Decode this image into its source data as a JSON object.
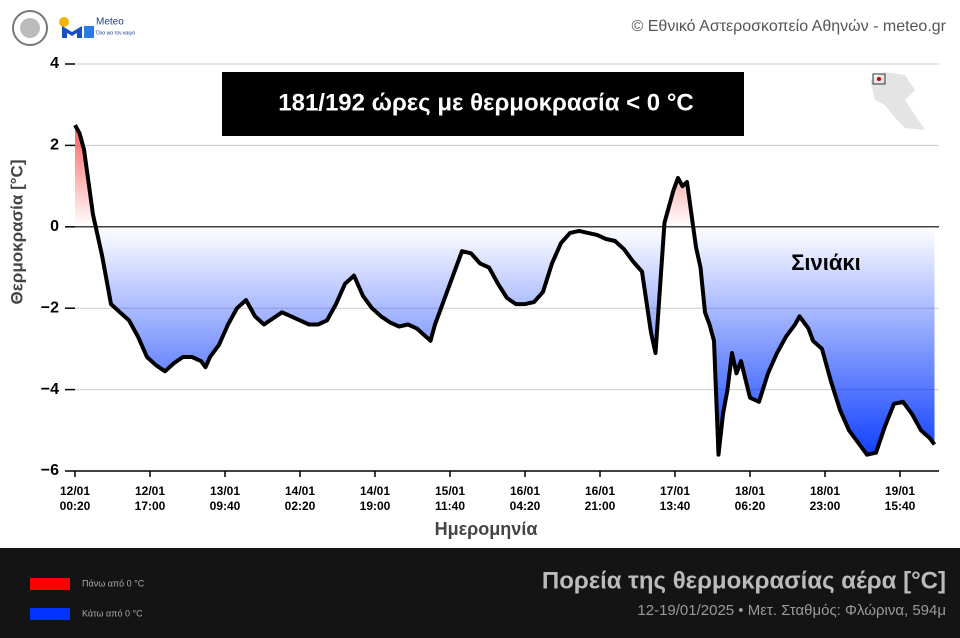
{
  "header": {
    "copyright": "© Εθνικό Αστεροσκοπείο Αθηνών - meteo.gr",
    "logo_name": "Meteo",
    "logo_tagline": "Όλα για τον καιρό"
  },
  "chart_data": {
    "type": "line",
    "title": "Πορεία της θερμοκρασίας αέρα [°C]",
    "subtitle": "12-19/01/2025 • Μετ. Σταθμός: Φλώρινα, 594μ",
    "annotation": "181/192 ώρες με θερμοκρασία < 0 °C",
    "x_label": "Ημερομηνία",
    "y_label": "Θερμοκρασία [°C]",
    "x": [
      "12/01 00:20",
      "12/01 01:20",
      "12/01 02:20",
      "12/01 04:20",
      "12/01 06:20",
      "12/01 08:20",
      "12/01 10:20",
      "12/01 12:20",
      "12/01 14:20",
      "12/01 16:20",
      "12/01 18:20",
      "12/01 20:20",
      "12/01 22:20",
      "13/01 00:20",
      "13/01 02:20",
      "13/01 04:20",
      "13/01 05:20",
      "13/01 06:20",
      "13/01 08:20",
      "13/01 10:20",
      "13/01 12:20",
      "13/01 14:20",
      "13/01 16:20",
      "13/01 18:20",
      "13/01 20:20",
      "13/01 22:20",
      "14/01 00:20",
      "14/01 02:20",
      "14/01 04:20",
      "14/01 06:20",
      "14/01 08:20",
      "14/01 10:20",
      "14/01 12:20",
      "14/01 14:20",
      "14/01 16:20",
      "14/01 18:20",
      "14/01 20:20",
      "14/01 22:20",
      "15/01 00:20",
      "15/01 02:20",
      "15/01 04:20",
      "15/01 06:20",
      "15/01 07:20",
      "15/01 08:20",
      "15/01 10:20",
      "15/01 12:20",
      "15/01 14:20",
      "15/01 16:20",
      "15/01 18:20",
      "15/01 20:20",
      "15/01 22:20",
      "16/01 00:20",
      "16/01 02:20",
      "16/01 04:20",
      "16/01 06:20",
      "16/01 08:20",
      "16/01 10:20",
      "16/01 12:20",
      "16/01 14:20",
      "16/01 16:20",
      "16/01 18:20",
      "16/01 20:20",
      "16/01 22:20",
      "17/01 00:20",
      "17/01 02:20",
      "17/01 04:20",
      "17/01 06:20",
      "17/01 08:20",
      "17/01 09:20",
      "17/01 10:20",
      "17/01 11:20",
      "17/01 12:20",
      "17/01 13:20",
      "17/01 14:20",
      "17/01 15:20",
      "17/01 16:20",
      "17/01 17:20",
      "17/01 18:20",
      "17/01 19:20",
      "17/01 20:20",
      "17/01 21:20",
      "17/01 22:20",
      "17/01 23:20",
      "18/01 00:20",
      "18/01 01:20",
      "18/01 02:20",
      "18/01 03:20",
      "18/01 04:20",
      "18/01 06:20",
      "18/01 08:20",
      "18/01 10:20",
      "18/01 12:20",
      "18/01 14:20",
      "18/01 16:20",
      "18/01 17:20",
      "18/01 19:20",
      "18/01 20:20",
      "18/01 22:20",
      "19/01 00:20",
      "19/01 02:20",
      "19/01 04:20",
      "19/01 06:20",
      "19/01 08:20",
      "19/01 10:20",
      "19/01 12:20",
      "19/01 14:20",
      "19/01 16:20",
      "19/01 18:20",
      "19/01 20:20",
      "19/01 22:20",
      "19/01 23:20"
    ],
    "series": [
      {
        "name": "Σινιάκι",
        "color": "#000000",
        "values": [
          2.5,
          2.3,
          1.9,
          0.3,
          -0.7,
          -1.9,
          -2.1,
          -2.3,
          -2.7,
          -3.2,
          -3.4,
          -3.55,
          -3.35,
          -3.2,
          -3.2,
          -3.3,
          -3.45,
          -3.2,
          -2.9,
          -2.4,
          -2.0,
          -1.8,
          -2.2,
          -2.4,
          -2.25,
          -2.1,
          -2.2,
          -2.3,
          -2.4,
          -2.4,
          -2.3,
          -1.9,
          -1.4,
          -1.2,
          -1.7,
          -2.0,
          -2.2,
          -2.35,
          -2.45,
          -2.4,
          -2.5,
          -2.7,
          -2.8,
          -2.4,
          -1.8,
          -1.2,
          -0.6,
          -0.65,
          -0.9,
          -1.0,
          -1.4,
          -1.75,
          -1.9,
          -1.9,
          -1.85,
          -1.6,
          -0.9,
          -0.4,
          -0.15,
          -0.1,
          -0.15,
          -0.2,
          -0.3,
          -0.35,
          -0.55,
          -0.85,
          -1.1,
          -2.6,
          -3.1,
          -1.5,
          0.1,
          0.5,
          0.9,
          1.2,
          1.0,
          1.1,
          0.3,
          -0.5,
          -1.0,
          -2.1,
          -2.4,
          -2.8,
          -5.6,
          -4.6,
          -4.0,
          -3.1,
          -3.6,
          -3.3,
          -4.2,
          -4.3,
          -3.6,
          -3.1,
          -2.7,
          -2.4,
          -2.2,
          -2.5,
          -2.8,
          -3.0,
          -3.8,
          -4.5,
          -5.0,
          -5.3,
          -5.6,
          -5.55,
          -4.9,
          -4.35,
          -4.3,
          -4.6,
          -5.0,
          -5.2,
          -5.35
        ]
      }
    ],
    "fills": [
      {
        "name": "Πάνω από 0 °C",
        "color": "#ff0000"
      },
      {
        "name": "Κάτω από 0 °C",
        "color": "#0033ff"
      }
    ],
    "xlim": [
      "12/01 00:20",
      "20/01 00:20"
    ],
    "xticks": [
      "12/01 00:20",
      "12/01 17:00",
      "13/01 09:40",
      "14/01 02:20",
      "14/01 19:00",
      "15/01 11:40",
      "16/01 04:20",
      "16/01 21:00",
      "17/01 13:40",
      "18/01 06:20",
      "18/01 23:00",
      "19/01 15:40"
    ],
    "ylim": [
      -6,
      4
    ],
    "yticks": [
      4,
      2,
      0,
      {
        "value": -2,
        "label": "−2"
      },
      {
        "value": -4,
        "label": "−4"
      },
      {
        "value": -6,
        "label": "−6"
      }
    ],
    "grid": true
  }
}
